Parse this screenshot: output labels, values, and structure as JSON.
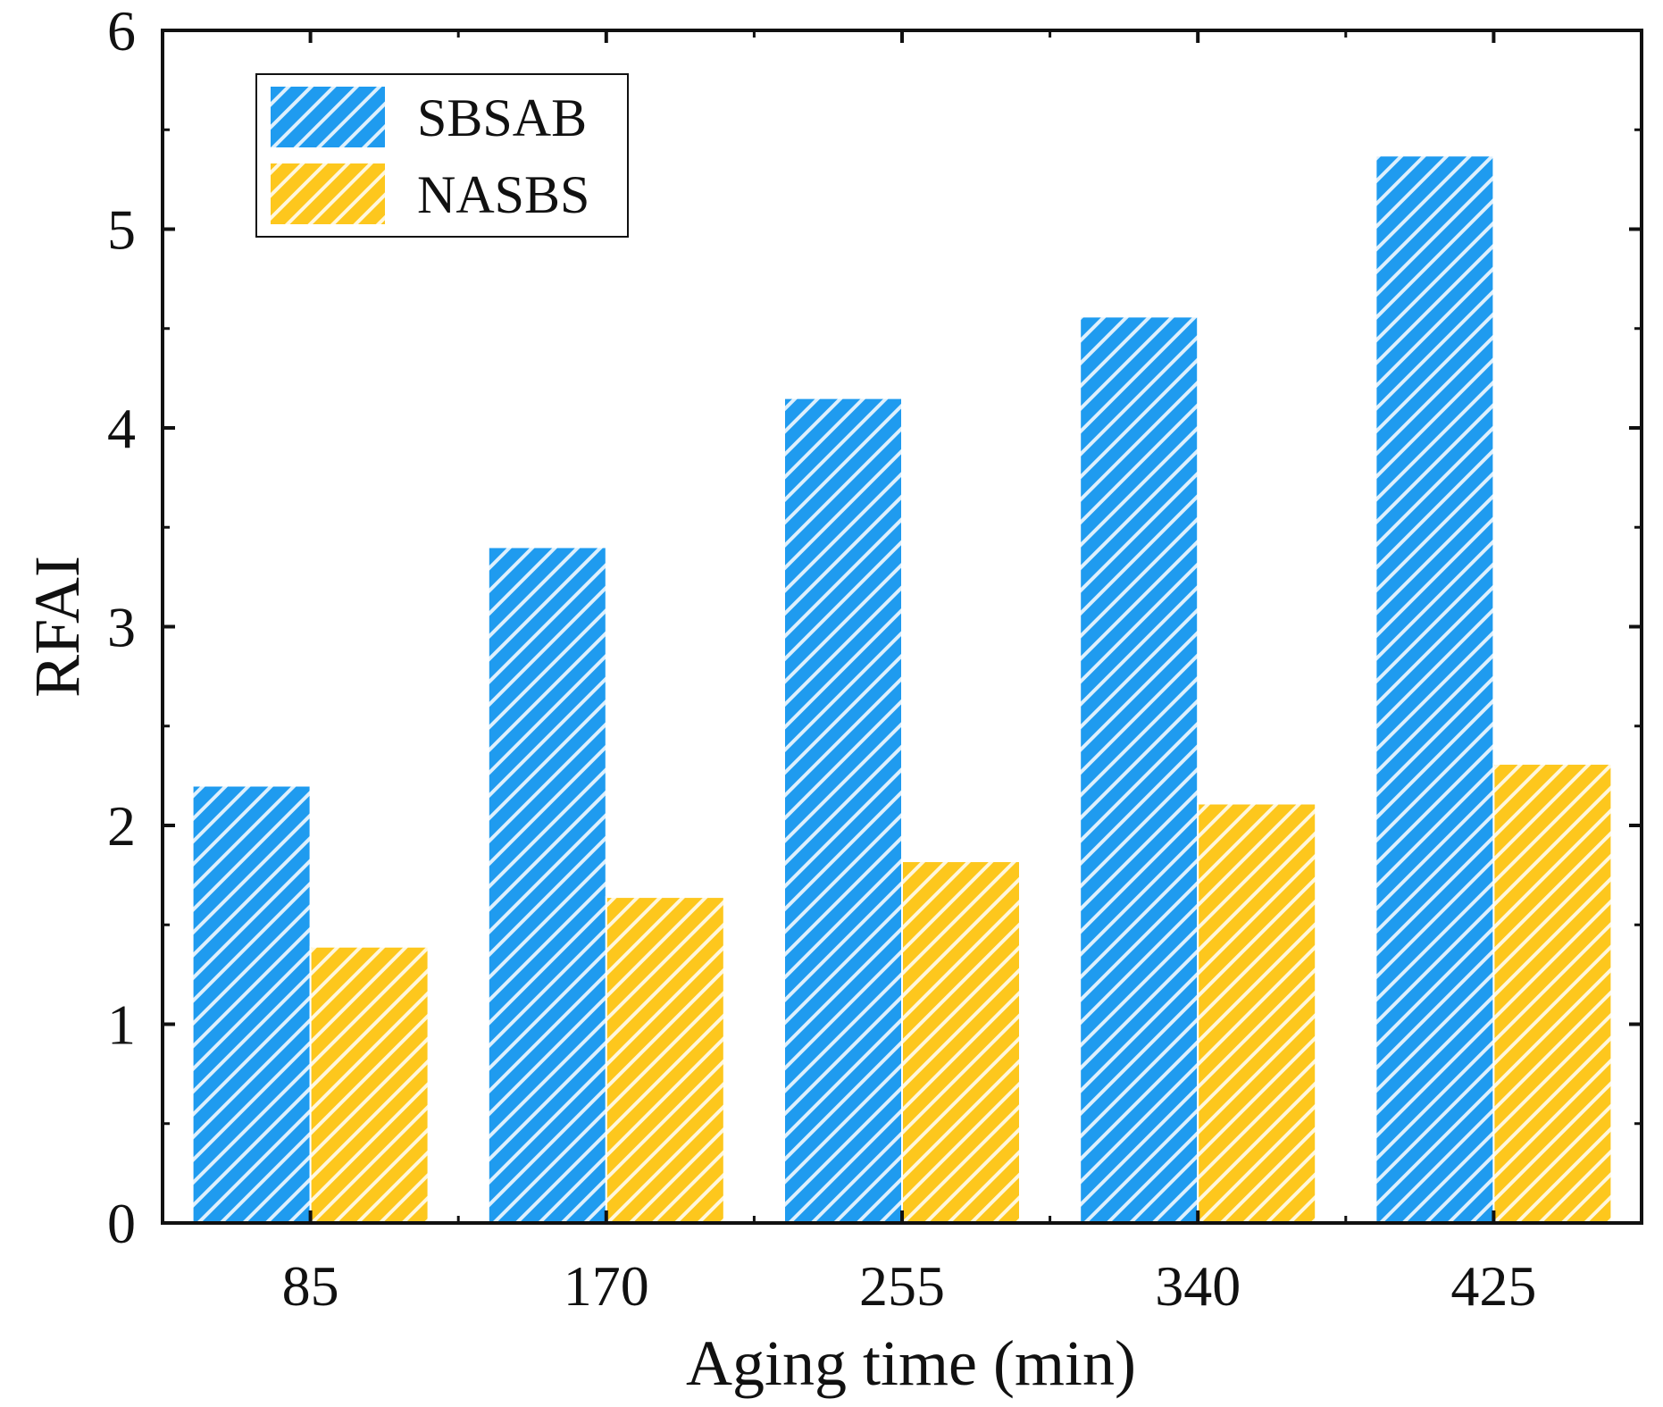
{
  "chart_data": {
    "type": "bar",
    "title": "",
    "xlabel": "Aging time (min)",
    "ylabel": "RFAI",
    "categories": [
      "85",
      "170",
      "255",
      "340",
      "425"
    ],
    "series": [
      {
        "name": "SBSAB",
        "values": [
          2.2,
          3.4,
          4.15,
          4.56,
          5.37
        ],
        "color": "#1f9bef",
        "hatch": "diagonal"
      },
      {
        "name": "NASBS",
        "values": [
          1.39,
          1.64,
          1.82,
          2.11,
          2.31
        ],
        "color": "#fdc71d",
        "hatch": "diagonal"
      }
    ],
    "ylim": [
      0,
      6
    ],
    "yticks": [
      "0",
      "1",
      "2",
      "3",
      "4",
      "5",
      "6"
    ],
    "legend": {
      "position": "top-left"
    },
    "grid": false
  }
}
